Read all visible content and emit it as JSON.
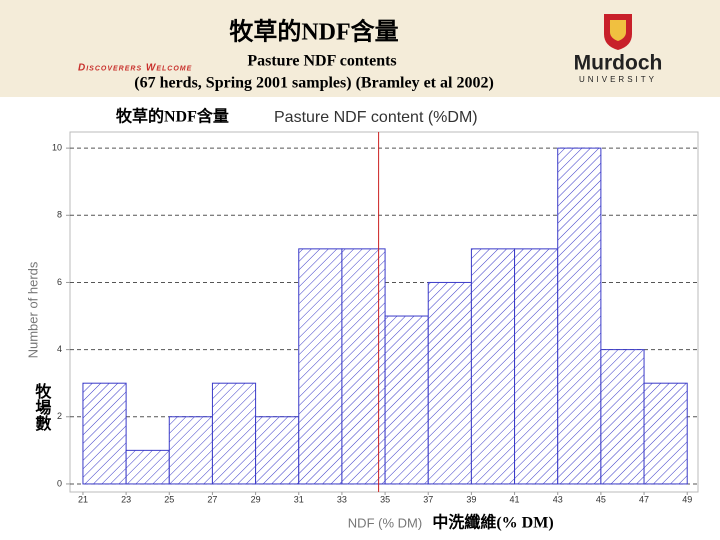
{
  "header": {
    "title": "牧草的NDF含量",
    "tagline": "Discoverers Welcome",
    "subtitle": "Pasture NDF contents",
    "note": "(67 herds, Spring 2001 samples) (Bramley et al 2002)",
    "logo_name": "Murdoch",
    "logo_sub": "UNIVERSITY"
  },
  "chart_data": {
    "type": "histogram",
    "title_zh": "牧草的NDF含量",
    "title": "Pasture NDF content (%DM)",
    "ylabel": "Number of herds",
    "ylabel_zh": "牧場數",
    "xlabel": "NDF (% DM)",
    "xlabel_zh": "中洗纖維(% DM)",
    "bins": [
      21,
      23,
      25,
      27,
      29,
      31,
      33,
      35,
      37,
      39,
      41,
      43,
      45,
      47,
      49
    ],
    "counts": [
      3,
      1,
      2,
      3,
      2,
      7,
      7,
      5,
      6,
      7,
      7,
      10,
      4,
      3
    ],
    "color": "#3a3ac8",
    "reference_line": 34.7,
    "reference_color": "#cc2222",
    "xlim": [
      20.4,
      49.5
    ],
    "ylim": [
      -0.24,
      10.48
    ],
    "xticks": [
      21,
      23,
      25,
      27,
      29,
      31,
      33,
      35,
      37,
      39,
      41,
      43,
      45,
      47,
      49
    ],
    "yticks": [
      0,
      2,
      4,
      6,
      8,
      10
    ],
    "grid": true
  }
}
